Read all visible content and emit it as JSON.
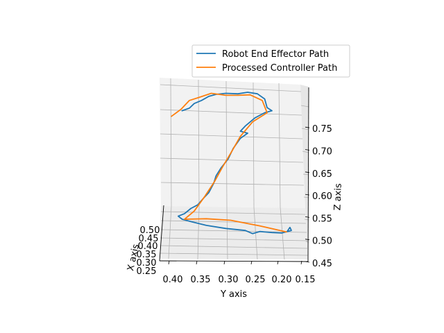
{
  "chart_data": {
    "type": "line",
    "projection": "3d",
    "title": "",
    "xlabel": "X axis",
    "ylabel": "Y axis",
    "zlabel": "Z axis",
    "legend_position": "top-right",
    "grid": true,
    "x_ticks": [
      "0.25",
      "0.30",
      "0.35",
      "0.40",
      "0.45",
      "0.50"
    ],
    "y_ticks": [
      "0.40",
      "0.35",
      "0.30",
      "0.25",
      "0.20",
      "0.15"
    ],
    "z_ticks": [
      "0.45",
      "0.50",
      "0.55",
      "0.60",
      "0.65",
      "0.70",
      "0.75"
    ],
    "series": [
      {
        "name": "Robot End Effector Path",
        "color": "#1f77b4",
        "points": [
          [
            0.4,
            0.37,
            0.752
          ],
          [
            0.4,
            0.355,
            0.757
          ],
          [
            0.4,
            0.345,
            0.766
          ],
          [
            0.4,
            0.33,
            0.772
          ],
          [
            0.4,
            0.315,
            0.78
          ],
          [
            0.4,
            0.3,
            0.784
          ],
          [
            0.4,
            0.28,
            0.786
          ],
          [
            0.4,
            0.255,
            0.785
          ],
          [
            0.4,
            0.235,
            0.788
          ],
          [
            0.4,
            0.215,
            0.785
          ],
          [
            0.4,
            0.2,
            0.775
          ],
          [
            0.4,
            0.195,
            0.758
          ],
          [
            0.4,
            0.185,
            0.752
          ],
          [
            0.4,
            0.2,
            0.748
          ],
          [
            0.4,
            0.22,
            0.738
          ],
          [
            0.4,
            0.24,
            0.722
          ],
          [
            0.4,
            0.25,
            0.712
          ],
          [
            0.4,
            0.235,
            0.708
          ],
          [
            0.4,
            0.25,
            0.698
          ],
          [
            0.4,
            0.265,
            0.678
          ],
          [
            0.4,
            0.275,
            0.658
          ],
          [
            0.4,
            0.29,
            0.64
          ],
          [
            0.4,
            0.3,
            0.625
          ],
          [
            0.4,
            0.305,
            0.61
          ],
          [
            0.4,
            0.315,
            0.592
          ],
          [
            0.4,
            0.325,
            0.582
          ],
          [
            0.4,
            0.338,
            0.568
          ],
          [
            0.4,
            0.352,
            0.561
          ],
          [
            0.4,
            0.365,
            0.551
          ],
          [
            0.4,
            0.378,
            0.546
          ],
          [
            0.4,
            0.37,
            0.54
          ],
          [
            0.4,
            0.35,
            0.535
          ],
          [
            0.4,
            0.32,
            0.528
          ],
          [
            0.4,
            0.28,
            0.522
          ],
          [
            0.4,
            0.24,
            0.518
          ],
          [
            0.4,
            0.225,
            0.512
          ],
          [
            0.4,
            0.21,
            0.516
          ],
          [
            0.4,
            0.185,
            0.514
          ],
          [
            0.4,
            0.165,
            0.513
          ],
          [
            0.4,
            0.145,
            0.518
          ],
          [
            0.4,
            0.148,
            0.524
          ],
          [
            0.4,
            0.153,
            0.517
          ]
        ]
      },
      {
        "name": "Processed Controller Path",
        "color": "#ff7f0e",
        "points": [
          [
            0.4,
            0.392,
            0.741
          ],
          [
            0.4,
            0.372,
            0.755
          ],
          [
            0.4,
            0.355,
            0.772
          ],
          [
            0.4,
            0.335,
            0.778
          ],
          [
            0.4,
            0.31,
            0.786
          ],
          [
            0.4,
            0.28,
            0.782
          ],
          [
            0.4,
            0.255,
            0.782
          ],
          [
            0.4,
            0.23,
            0.783
          ],
          [
            0.4,
            0.205,
            0.772
          ],
          [
            0.4,
            0.195,
            0.748
          ],
          [
            0.4,
            0.225,
            0.73
          ],
          [
            0.4,
            0.25,
            0.702
          ],
          [
            0.4,
            0.268,
            0.672
          ],
          [
            0.4,
            0.288,
            0.64
          ],
          [
            0.4,
            0.303,
            0.614
          ],
          [
            0.4,
            0.323,
            0.585
          ],
          [
            0.4,
            0.345,
            0.556
          ],
          [
            0.4,
            0.365,
            0.54
          ],
          [
            0.4,
            0.32,
            0.541
          ],
          [
            0.4,
            0.27,
            0.538
          ],
          [
            0.4,
            0.21,
            0.527
          ],
          [
            0.4,
            0.155,
            0.515
          ]
        ]
      }
    ]
  }
}
